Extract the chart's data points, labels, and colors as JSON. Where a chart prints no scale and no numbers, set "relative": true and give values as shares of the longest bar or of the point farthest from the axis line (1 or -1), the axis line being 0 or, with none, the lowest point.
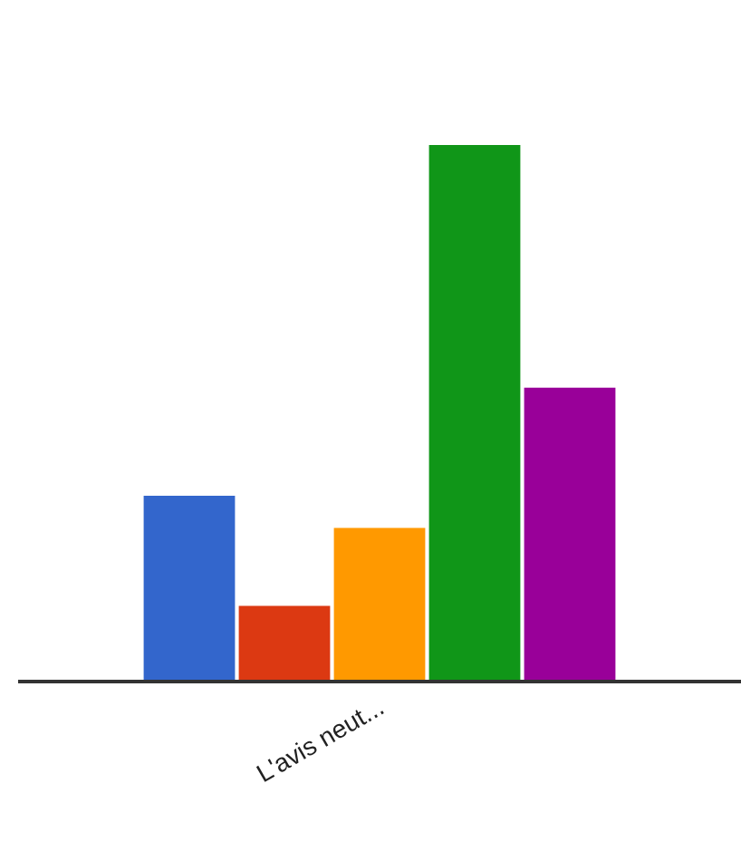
{
  "chart_data": {
    "type": "bar",
    "relative": true,
    "categories": [
      null,
      null,
      "L'avis neut...",
      null,
      null
    ],
    "colors": [
      "#3366cc",
      "#dc3912",
      "#ff9900",
      "#109618",
      "#990099"
    ],
    "values": [
      0.344,
      0.138,
      0.284,
      1,
      0.546
    ]
  }
}
